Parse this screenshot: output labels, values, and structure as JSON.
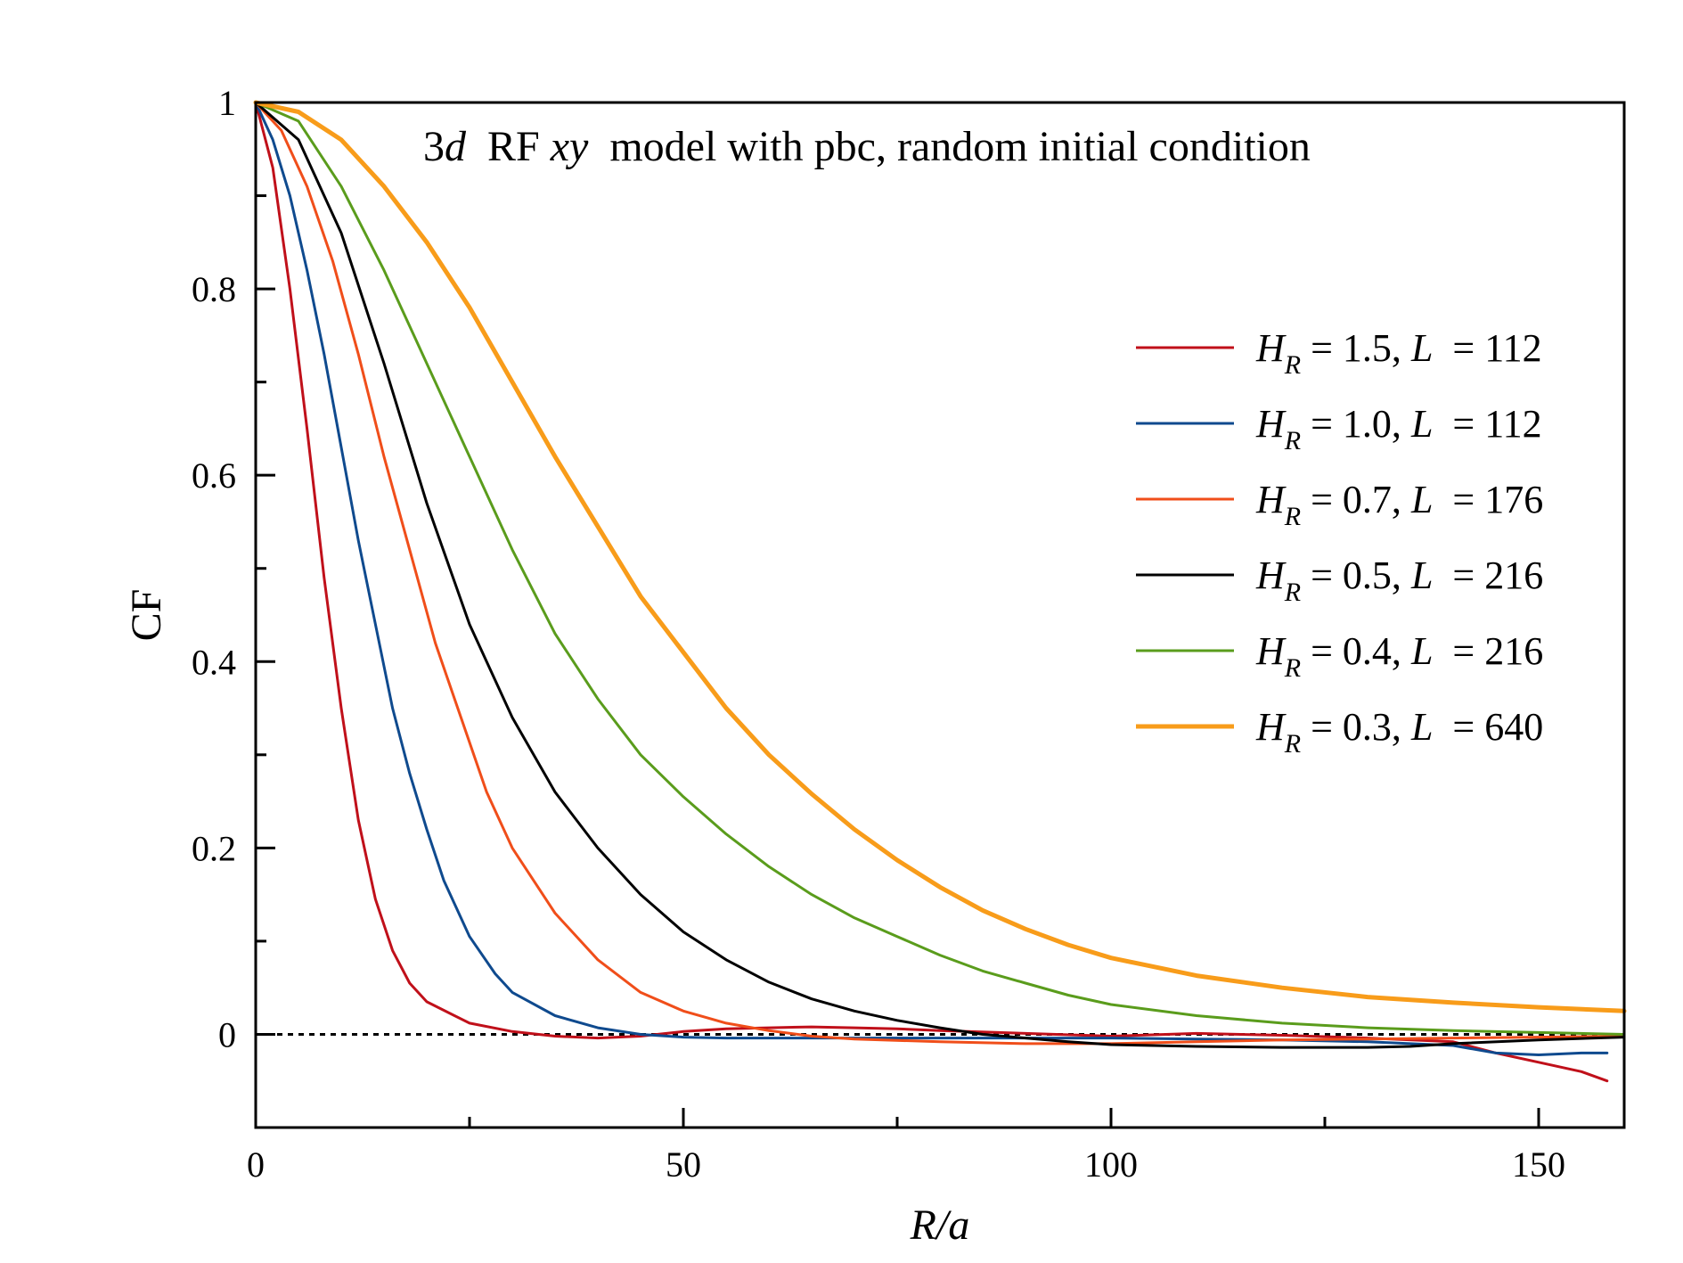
{
  "chart_data": {
    "type": "line",
    "title_parts": [
      {
        "text": "3",
        "italic": false
      },
      {
        "text": "d",
        "italic": true
      },
      {
        "text": "  RF ",
        "italic": false
      },
      {
        "text": "xy",
        "italic": true
      },
      {
        "text": "  model with pbc, random initial condition",
        "italic": false
      }
    ],
    "xlabel": "R/a",
    "ylabel": "CF",
    "xlim": [
      0,
      160
    ],
    "ylim": [
      -0.1,
      1.0
    ],
    "x_ticks": [
      0,
      50,
      100,
      150
    ],
    "x_minor_ticks": [
      25,
      75,
      125
    ],
    "y_ticks": [
      0,
      0.2,
      0.4,
      0.6,
      0.8,
      1
    ],
    "y_tick_labels": [
      "0",
      "0.2",
      "0.4",
      "0.6",
      "0.8",
      "1"
    ],
    "y_minor_ticks": [
      -0.1,
      0.1,
      0.3,
      0.5,
      0.7,
      0.9
    ],
    "zero_line": {
      "y": 0,
      "style": "dotted"
    },
    "legend_position": "right",
    "series": [
      {
        "name_hr": "1.5",
        "name_l": "112",
        "color": "#c0101a",
        "width": 3,
        "x": [
          0,
          2,
          4,
          6,
          8,
          10,
          12,
          14,
          16,
          18,
          20,
          25,
          30,
          35,
          40,
          45,
          50,
          55,
          60,
          65,
          70,
          75,
          80,
          90,
          100,
          110,
          120,
          130,
          140,
          145,
          150,
          155,
          158
        ],
        "y": [
          1.0,
          0.93,
          0.8,
          0.65,
          0.49,
          0.35,
          0.23,
          0.145,
          0.09,
          0.055,
          0.035,
          0.012,
          0.003,
          -0.002,
          -0.004,
          -0.002,
          0.003,
          0.006,
          0.007,
          0.008,
          0.007,
          0.006,
          0.004,
          0.001,
          -0.002,
          0.001,
          -0.001,
          -0.004,
          -0.008,
          -0.02,
          -0.03,
          -0.04,
          -0.05
        ]
      },
      {
        "name_hr": "1.0",
        "name_l": "112",
        "color": "#0f4a8e",
        "width": 3,
        "x": [
          0,
          2,
          4,
          6,
          8,
          10,
          12,
          14,
          16,
          18,
          20,
          22,
          25,
          28,
          30,
          35,
          40,
          45,
          50,
          55,
          60,
          70,
          80,
          90,
          100,
          110,
          120,
          130,
          140,
          145,
          150,
          155,
          158
        ],
        "y": [
          1.0,
          0.96,
          0.9,
          0.82,
          0.73,
          0.63,
          0.53,
          0.44,
          0.35,
          0.28,
          0.22,
          0.165,
          0.105,
          0.065,
          0.045,
          0.02,
          0.007,
          0.0,
          -0.003,
          -0.004,
          -0.004,
          -0.004,
          -0.004,
          -0.004,
          -0.004,
          -0.005,
          -0.006,
          -0.008,
          -0.012,
          -0.02,
          -0.022,
          -0.02,
          -0.02
        ]
      },
      {
        "name_hr": "0.7",
        "name_l": "176",
        "color": "#f04e1a",
        "width": 3,
        "x": [
          0,
          3,
          6,
          9,
          12,
          15,
          18,
          21,
          24,
          27,
          30,
          35,
          40,
          45,
          50,
          55,
          60,
          65,
          70,
          80,
          90,
          100,
          110,
          120,
          130,
          140,
          150,
          160
        ],
        "y": [
          1.0,
          0.97,
          0.91,
          0.83,
          0.73,
          0.62,
          0.52,
          0.42,
          0.34,
          0.26,
          0.2,
          0.13,
          0.08,
          0.045,
          0.025,
          0.012,
          0.004,
          -0.002,
          -0.005,
          -0.008,
          -0.01,
          -0.01,
          -0.008,
          -0.006,
          -0.005,
          -0.004,
          -0.003,
          -0.002
        ]
      },
      {
        "name_hr": "0.5",
        "name_l": "216",
        "color": "#000000",
        "width": 3,
        "x": [
          0,
          5,
          10,
          15,
          20,
          25,
          30,
          35,
          40,
          45,
          50,
          55,
          60,
          65,
          70,
          75,
          80,
          85,
          90,
          95,
          100,
          110,
          120,
          130,
          135,
          140,
          150,
          160
        ],
        "y": [
          1.0,
          0.96,
          0.86,
          0.72,
          0.57,
          0.44,
          0.34,
          0.26,
          0.2,
          0.15,
          0.11,
          0.08,
          0.056,
          0.038,
          0.025,
          0.015,
          0.007,
          0.0,
          -0.004,
          -0.008,
          -0.011,
          -0.013,
          -0.014,
          -0.014,
          -0.013,
          -0.01,
          -0.006,
          -0.003
        ]
      },
      {
        "name_hr": "0.4",
        "name_l": "216",
        "color": "#5a9c1c",
        "width": 3,
        "x": [
          0,
          5,
          10,
          15,
          20,
          25,
          30,
          35,
          40,
          45,
          50,
          55,
          60,
          65,
          70,
          75,
          80,
          85,
          90,
          95,
          100,
          110,
          120,
          130,
          140,
          150,
          160
        ],
        "y": [
          1.0,
          0.98,
          0.91,
          0.82,
          0.72,
          0.62,
          0.52,
          0.43,
          0.36,
          0.3,
          0.255,
          0.215,
          0.18,
          0.15,
          0.125,
          0.105,
          0.085,
          0.068,
          0.055,
          0.042,
          0.032,
          0.02,
          0.012,
          0.007,
          0.004,
          0.002,
          0.0
        ]
      },
      {
        "name_hr": "0.3",
        "name_l": "640",
        "color": "#f89c1a",
        "width": 5,
        "x": [
          0,
          5,
          10,
          15,
          20,
          25,
          30,
          35,
          40,
          45,
          50,
          55,
          60,
          65,
          70,
          75,
          80,
          85,
          90,
          95,
          100,
          110,
          120,
          130,
          140,
          150,
          160
        ],
        "y": [
          1.0,
          0.99,
          0.96,
          0.91,
          0.85,
          0.78,
          0.7,
          0.62,
          0.545,
          0.47,
          0.41,
          0.35,
          0.3,
          0.258,
          0.22,
          0.187,
          0.158,
          0.133,
          0.113,
          0.096,
          0.082,
          0.063,
          0.05,
          0.04,
          0.034,
          0.029,
          0.025
        ]
      }
    ]
  }
}
